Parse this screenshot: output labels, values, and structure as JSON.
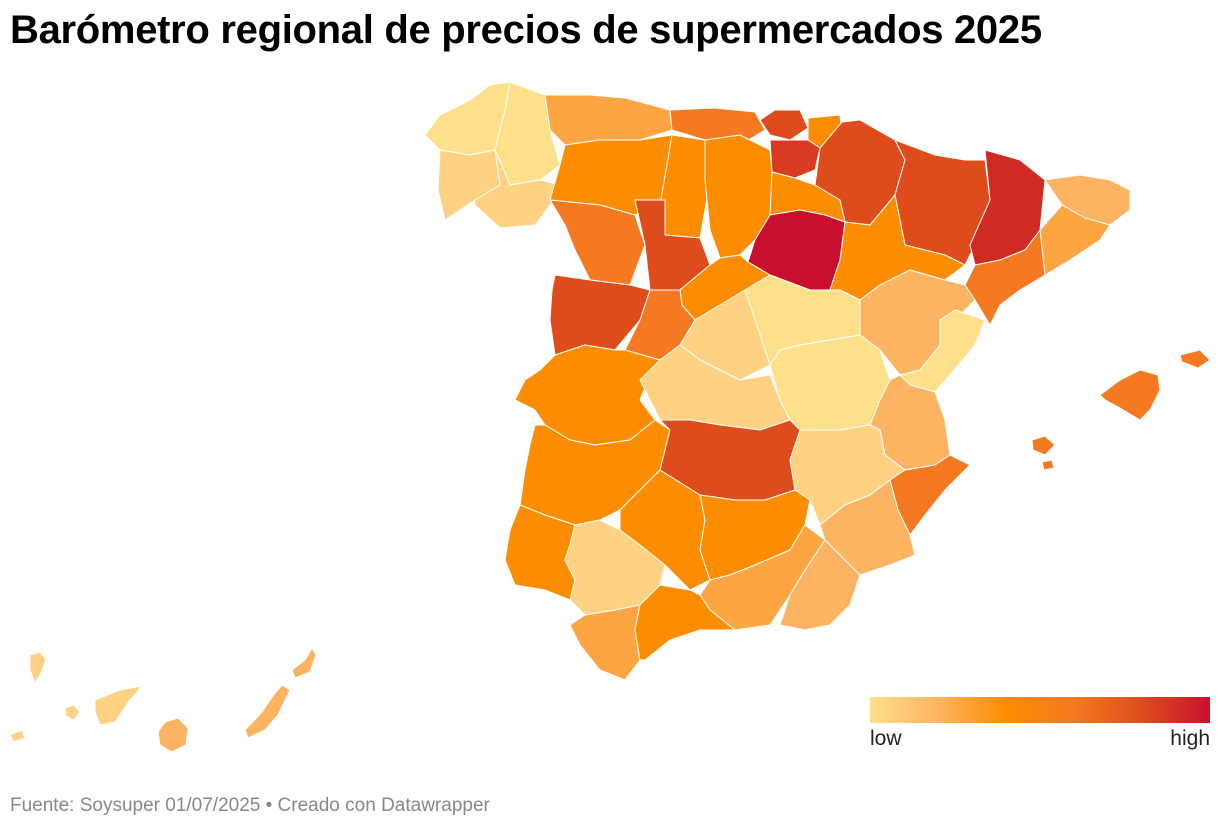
{
  "title": "Barómetro regional de precios de supermercados 2025",
  "colors": {
    "low": "#fee08b",
    "mid_low": "#fdb462",
    "mid": "#fd8d00",
    "mid_high": "#f47920",
    "high_mid": "#de4c1c",
    "high": "#c8102e"
  },
  "legend": {
    "low_label": "low",
    "high_label": "high"
  },
  "footer": {
    "text": "Fuente: Soysuper 01/07/2025 • Creado con Datawrapper"
  }
}
